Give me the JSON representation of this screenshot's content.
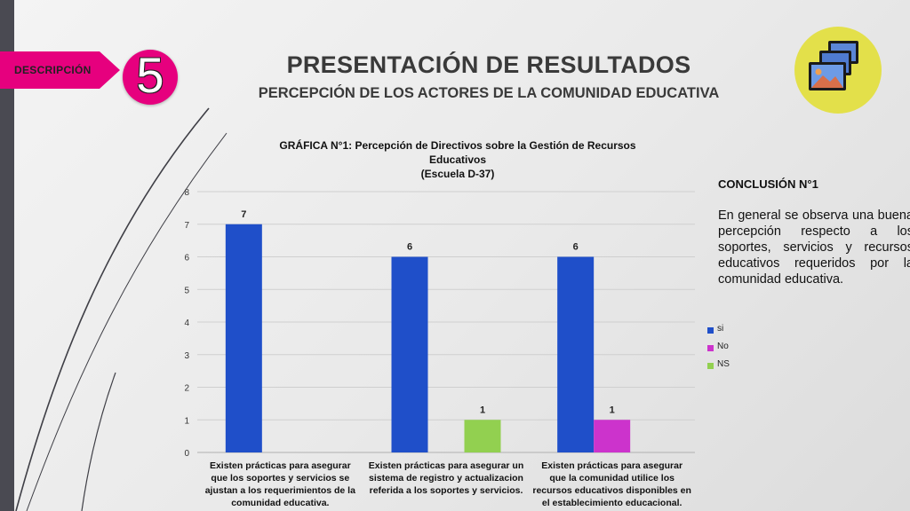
{
  "header": {
    "tag_label": "DESCRIPCIÓN",
    "step_number": "5",
    "title": "PRESENTACIÓN DE RESULTADOS",
    "subtitle": "PERCEPCIÓN DE LOS ACTORES DE LA COMUNIDAD EDUCATIVA",
    "tag_color": "#e6007e",
    "icon": "pictures-icon"
  },
  "chart_data": {
    "type": "bar",
    "title_lines": [
      "GRÁFICA N°1: Percepción de Directivos sobre la Gestión de Recursos",
      "Educativos",
      "(Escuela D-37)"
    ],
    "categories": [
      [
        "Existen prácticas para asegurar",
        "que los soportes y servicios  se",
        "ajustan a los requerimientos  de la",
        "comunidad educativa."
      ],
      [
        "Existen prácticas para asegurar un",
        "sistema de registro y actualizacion",
        "referida a los soportes y servicios."
      ],
      [
        "Existen prácticas para asegurar",
        "que la comunidad utilice los",
        "recursos educativos disponibles en",
        "el establecimiento educacional."
      ]
    ],
    "series": [
      {
        "name": "si",
        "color": "#1f4fc9",
        "values": [
          7,
          6,
          6
        ]
      },
      {
        "name": "No",
        "color": "#cc33cc",
        "values": [
          0,
          0,
          1
        ]
      },
      {
        "name": "NS",
        "color": "#92d050",
        "values": [
          0,
          1,
          0
        ]
      }
    ],
    "ylim": [
      0,
      8
    ],
    "yticks": [
      "0",
      "1",
      "2",
      "3",
      "4",
      "5",
      "6",
      "7",
      "8"
    ],
    "grid": true,
    "legend_position": "right"
  },
  "conclusion": {
    "title": "CONCLUSIÓN N°1",
    "text": "En general se observa una buena percepción respecto a los soportes, servicios y recursos educativos requeridos por la comunidad educativa."
  }
}
